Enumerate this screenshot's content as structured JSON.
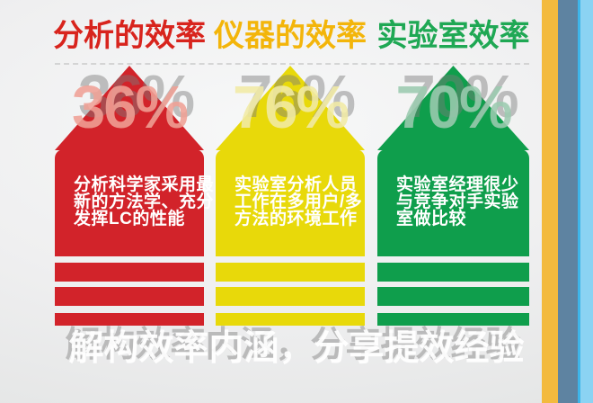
{
  "columns": [
    {
      "heading": "分析的效率",
      "heading_color": "#d8241d",
      "percent": "36%",
      "arrow_color": "#d2232a",
      "percent_tint": "#f0a196",
      "body_lines": [
        "分析科学家采用最",
        "新的方法学、充分",
        "发挥LC的性能"
      ]
    },
    {
      "heading": "仪器的效率",
      "heading_color": "#f3b50a",
      "percent": "76%",
      "arrow_color": "#e8d90a",
      "percent_tint": "#f2eba6",
      "body_lines": [
        "实验室分析人员",
        "工作在多用户/多",
        "方法的环境工作"
      ]
    },
    {
      "heading": "实验室效率",
      "heading_color": "#1fa854",
      "percent": "70%",
      "arrow_color": "#0f9e4c",
      "percent_tint": "#9ccbb0",
      "body_lines": [
        "实验室经理很少",
        "与竞争对手实验",
        "室做比较"
      ]
    }
  ],
  "footer": {
    "text": "解构效率内涵，分享提效经验"
  },
  "side_stripes": [
    {
      "name": "orange",
      "color": "#f3ba3e"
    },
    {
      "name": "slate-blue",
      "color": "#5e83a1"
    },
    {
      "name": "light-blue",
      "color": "#8bd3f3"
    }
  ],
  "chart_data": {
    "type": "bar",
    "title": "解构效率内涵，分享提效经验",
    "categories": [
      "分析的效率",
      "仪器的效率",
      "实验室效率"
    ],
    "values": [
      36,
      76,
      70
    ],
    "unit": "%",
    "series_colors": [
      "#d2232a",
      "#e8d90a",
      "#0f9e4c"
    ],
    "annotations": [
      "分析科学家采用最新的方法学、充分发挥LC的性能",
      "实验室分析人员工作在多用户/多方法的环境工作",
      "实验室经理很少与竞争对手实验室做比较"
    ],
    "xlabel": "",
    "ylabel": "",
    "legend": false,
    "grid": false
  }
}
